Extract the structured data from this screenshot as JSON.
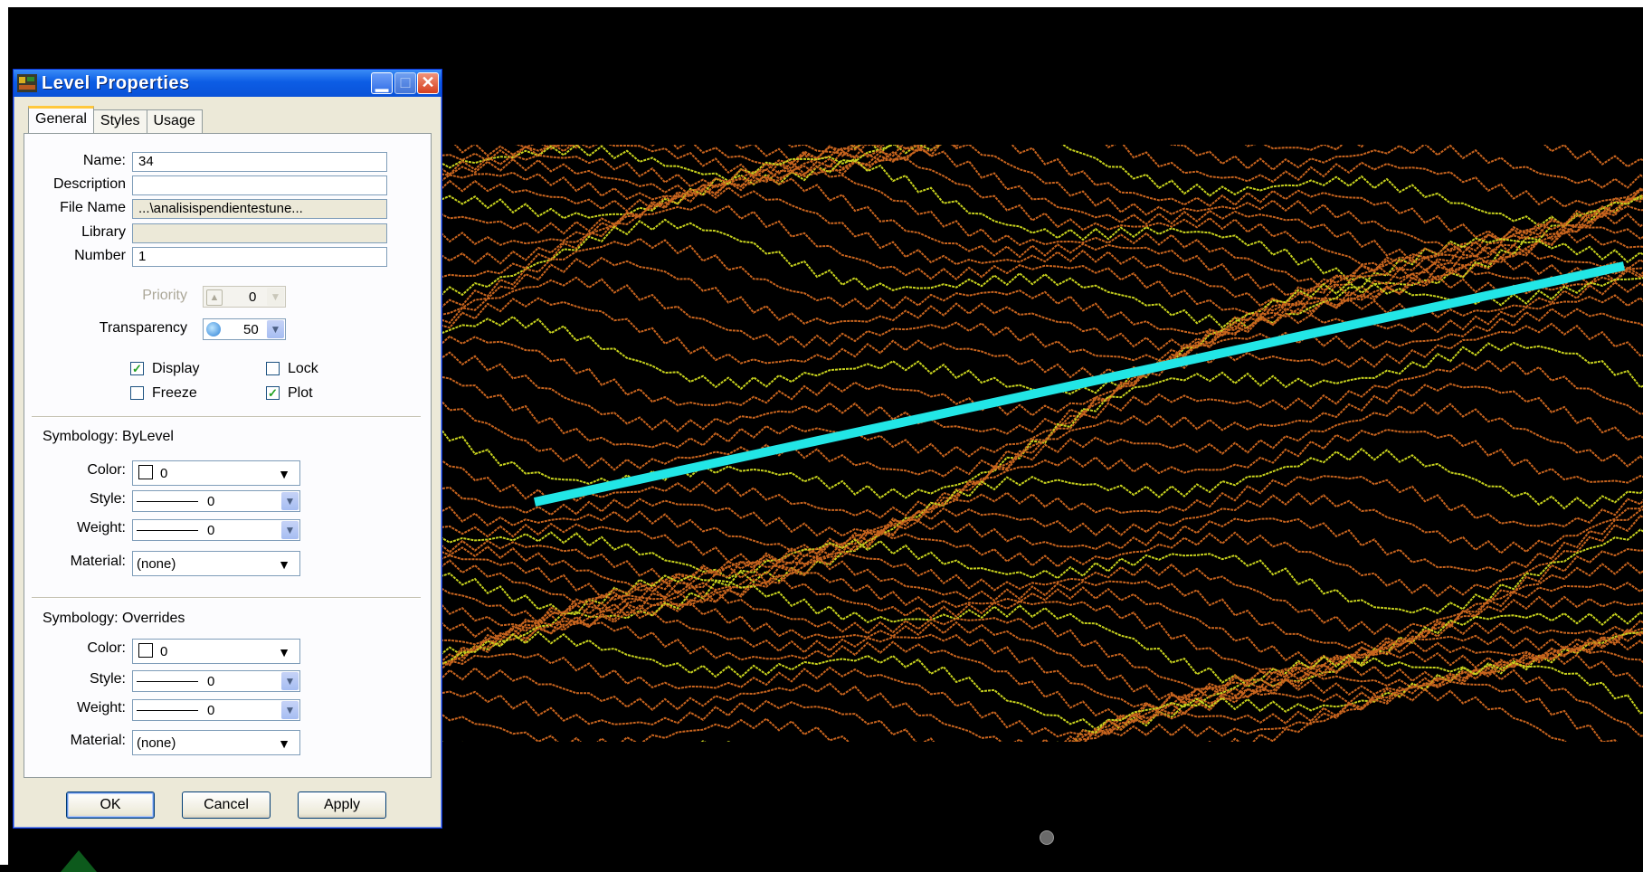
{
  "dialog": {
    "title": "Level Properties",
    "tabs": [
      {
        "label": "General",
        "active": true
      },
      {
        "label": "Styles",
        "active": false
      },
      {
        "label": "Usage",
        "active": false
      }
    ],
    "fields": {
      "name": {
        "label": "Name:",
        "value": "34"
      },
      "description": {
        "label": "Description",
        "value": ""
      },
      "file_name": {
        "label": "File Name",
        "value": "...\\analisispendientestune..."
      },
      "library": {
        "label": "Library",
        "value": ""
      },
      "number": {
        "label": "Number",
        "value": "1"
      }
    },
    "priority": {
      "label": "Priority",
      "value": "0"
    },
    "transparency": {
      "label": "Transparency",
      "value": "50"
    },
    "checkboxes": {
      "display": {
        "label": "Display",
        "checked": true
      },
      "lock": {
        "label": "Lock",
        "checked": false
      },
      "freeze": {
        "label": "Freeze",
        "checked": false
      },
      "plot": {
        "label": "Plot",
        "checked": true
      }
    },
    "bylevel": {
      "heading": "Symbology: ByLevel",
      "color_label": "Color:",
      "color_value": "0",
      "style_label": "Style:",
      "style_value": "0",
      "weight_label": "Weight:",
      "weight_value": "0",
      "material_label": "Material:",
      "material_value": "(none)"
    },
    "overrides": {
      "heading": "Symbology: Overrides",
      "color_label": "Color:",
      "color_value": "0",
      "style_label": "Style:",
      "style_value": "0",
      "weight_label": "Weight:",
      "weight_value": "0",
      "material_label": "Material:",
      "material_value": "(none)"
    },
    "buttons": {
      "ok": "OK",
      "cancel": "Cancel",
      "apply": "Apply"
    }
  },
  "colors": {
    "contour_major": "#c8d21e",
    "contour_minor": "#c8641e",
    "profile_line": "#22e6e6",
    "titlebar": "#0a52d8"
  },
  "icons": {
    "app": "level-manager-icon",
    "priority": "priority-icon",
    "transparency": "transparency-icon"
  }
}
